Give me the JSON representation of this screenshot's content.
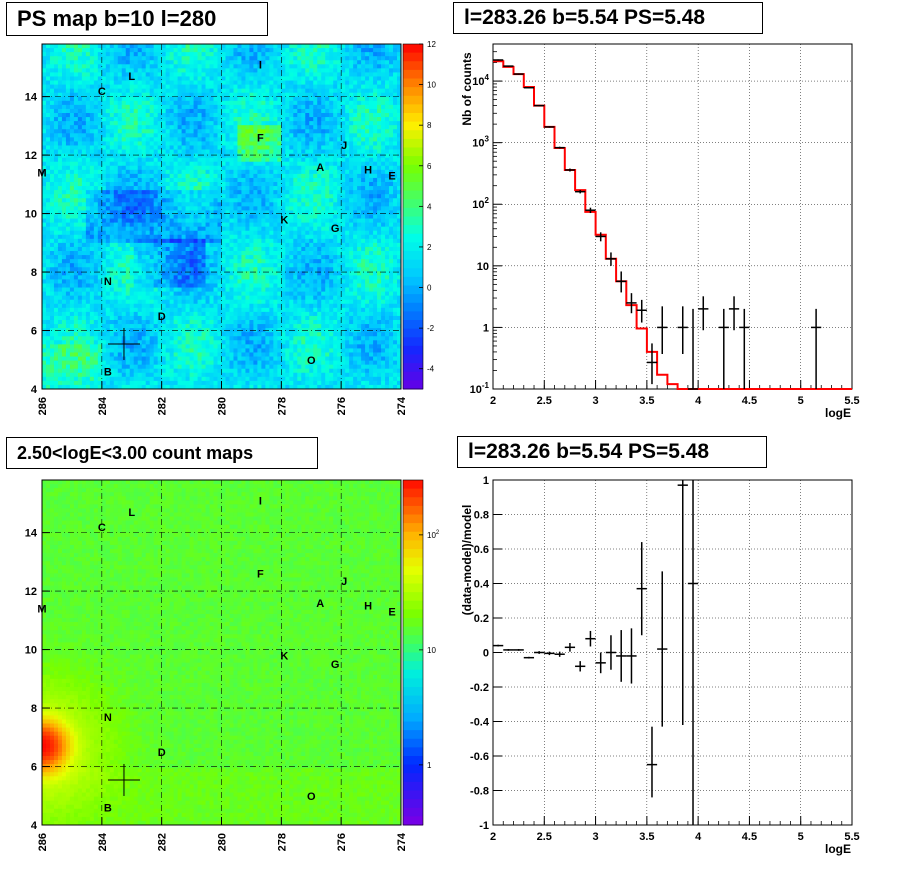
{
  "panels": {
    "ps_map_title": "PS map b=10 l=280",
    "spectrum_title": "l=283.26 b=5.54 PS=5.48",
    "count_map_title": "2.50<logE<3.00 count maps",
    "residual_title": "l=283.26 b=5.54 PS=5.48"
  },
  "colors": {
    "background": "#ffffff",
    "frame": "#000000",
    "model_line": "#ff0000",
    "data_marker": "#000000"
  },
  "chart_data": [
    {
      "type": "heatmap",
      "title": "PS map b=10 l=280",
      "x_ticks": [
        "286",
        "284",
        "282",
        "280",
        "278",
        "276",
        "274"
      ],
      "y_ticks": [
        "4",
        "6",
        "8",
        "10",
        "12",
        "14"
      ],
      "xlim": [
        286,
        274
      ],
      "ylim": [
        4,
        15.8
      ],
      "grid": true,
      "colorbar_ticks": [
        "12",
        "10",
        "8",
        "6",
        "4",
        "2",
        "0",
        "-2",
        "-4"
      ],
      "colorbar_range": [
        -5,
        12
      ],
      "dominant_value": 1.5,
      "source_marker": {
        "l": 283.26,
        "b": 5.54
      },
      "labels": [
        {
          "t": "L",
          "l": 283.0,
          "b": 14.7
        },
        {
          "t": "I",
          "l": 278.7,
          "b": 15.1
        },
        {
          "t": "C",
          "l": 284.0,
          "b": 14.2
        },
        {
          "t": "F",
          "l": 278.7,
          "b": 12.6
        },
        {
          "t": "J",
          "l": 275.9,
          "b": 12.35
        },
        {
          "t": "A",
          "l": 276.7,
          "b": 11.6
        },
        {
          "t": "H",
          "l": 275.1,
          "b": 11.5
        },
        {
          "t": "E",
          "l": 274.3,
          "b": 11.3
        },
        {
          "t": "M",
          "l": 286.0,
          "b": 11.4
        },
        {
          "t": "K",
          "l": 277.9,
          "b": 9.8
        },
        {
          "t": "G",
          "l": 276.2,
          "b": 9.5
        },
        {
          "t": "N",
          "l": 283.8,
          "b": 7.7
        },
        {
          "t": "D",
          "l": 282.0,
          "b": 6.5
        },
        {
          "t": "O",
          "l": 277.0,
          "b": 5.0
        },
        {
          "t": "B",
          "l": 283.8,
          "b": 4.6
        }
      ]
    },
    {
      "type": "line",
      "title": "l=283.26 b=5.54 PS=5.48",
      "xlabel": "logE",
      "ylabel": "Nb of counts",
      "xlim": [
        2,
        5.5
      ],
      "ylim": [
        0.1,
        40000
      ],
      "y_log": true,
      "grid": true,
      "x_ticks": [
        "2",
        "2.5",
        "3",
        "3.5",
        "4",
        "4.5",
        "5",
        "5.5"
      ],
      "y_ticks": [
        "10^-1",
        "1",
        "10",
        "10^2",
        "10^3",
        "10^4"
      ],
      "series": [
        {
          "kind": "model-step",
          "x_edges": [
            2.0,
            2.1,
            2.2,
            2.3,
            2.4,
            2.5,
            2.6,
            2.7,
            2.8,
            2.9,
            3.0,
            3.1,
            3.2,
            3.3,
            3.4,
            3.5,
            3.6,
            3.7,
            3.8,
            3.9,
            4.0,
            4.1,
            4.2,
            4.3,
            5.5
          ],
          "values": [
            21000,
            17000,
            13000,
            8000,
            4000,
            1800,
            820,
            360,
            170,
            75,
            32,
            13,
            5.6,
            2.3,
            0.96,
            0.4,
            0.17,
            0.12,
            0.1,
            0.1,
            0.1,
            0.1,
            0.1,
            0.1
          ]
        },
        {
          "kind": "data-points",
          "points": [
            {
              "x": 2.05,
              "y": 22000,
              "lo": 21500,
              "hi": 22500
            },
            {
              "x": 2.15,
              "y": 17500,
              "lo": 17100,
              "hi": 17900
            },
            {
              "x": 2.25,
              "y": 13000,
              "lo": 12700,
              "hi": 13300
            },
            {
              "x": 2.35,
              "y": 7800,
              "lo": 7600,
              "hi": 8000
            },
            {
              "x": 2.45,
              "y": 4000,
              "lo": 3900,
              "hi": 4100
            },
            {
              "x": 2.55,
              "y": 1800,
              "lo": 1750,
              "hi": 1850
            },
            {
              "x": 2.65,
              "y": 830,
              "lo": 800,
              "hi": 860
            },
            {
              "x": 2.75,
              "y": 360,
              "lo": 340,
              "hi": 380
            },
            {
              "x": 2.85,
              "y": 160,
              "lo": 150,
              "hi": 170
            },
            {
              "x": 2.95,
              "y": 80,
              "lo": 72,
              "hi": 88
            },
            {
              "x": 3.05,
              "y": 30,
              "lo": 25,
              "hi": 35
            },
            {
              "x": 3.15,
              "y": 13,
              "lo": 10,
              "hi": 16.5
            },
            {
              "x": 3.25,
              "y": 5.6,
              "lo": 3.7,
              "hi": 8.1
            },
            {
              "x": 3.35,
              "y": 2.5,
              "lo": 1.7,
              "hi": 3.6
            },
            {
              "x": 3.45,
              "y": 1.9,
              "lo": 1.2,
              "hi": 2.8
            },
            {
              "x": 3.55,
              "y": 0.27,
              "lo": 0.12,
              "hi": 0.55
            },
            {
              "x": 3.65,
              "y": 1.0,
              "lo": 0.37,
              "hi": 2.2
            },
            {
              "x": 3.85,
              "y": 1.0,
              "lo": 0.37,
              "hi": 2.2
            },
            {
              "x": 3.95,
              "y": 0.1,
              "lo": 0.1,
              "hi": 2.0
            },
            {
              "x": 4.05,
              "y": 2.0,
              "lo": 0.9,
              "hi": 3.2
            },
            {
              "x": 4.25,
              "y": 1.0,
              "lo": 0.1,
              "hi": 2.0
            },
            {
              "x": 4.35,
              "y": 2.0,
              "lo": 0.9,
              "hi": 3.2
            },
            {
              "x": 4.45,
              "y": 1.0,
              "lo": 0.1,
              "hi": 2.0
            },
            {
              "x": 5.15,
              "y": 1.0,
              "lo": 0.1,
              "hi": 2.0
            }
          ]
        }
      ]
    },
    {
      "type": "heatmap",
      "title": "2.50<logE<3.00 count maps",
      "x_ticks": [
        "286",
        "284",
        "282",
        "280",
        "278",
        "276",
        "274"
      ],
      "y_ticks": [
        "4",
        "6",
        "8",
        "10",
        "12",
        "14"
      ],
      "xlim": [
        286,
        274
      ],
      "ylim": [
        4,
        15.8
      ],
      "grid": true,
      "colorbar_ticks": [
        "10^2",
        "10",
        "1"
      ],
      "colorbar_range": [
        0.3,
        300
      ],
      "dominant_value": 15,
      "hotspot": {
        "l": 286.0,
        "b": 6.7
      },
      "source_marker": {
        "l": 283.26,
        "b": 5.54
      },
      "labels": [
        {
          "t": "L",
          "l": 283.0,
          "b": 14.7
        },
        {
          "t": "I",
          "l": 278.7,
          "b": 15.1
        },
        {
          "t": "C",
          "l": 284.0,
          "b": 14.2
        },
        {
          "t": "F",
          "l": 278.7,
          "b": 12.6
        },
        {
          "t": "J",
          "l": 275.9,
          "b": 12.35
        },
        {
          "t": "A",
          "l": 276.7,
          "b": 11.6
        },
        {
          "t": "H",
          "l": 275.1,
          "b": 11.5
        },
        {
          "t": "E",
          "l": 274.3,
          "b": 11.3
        },
        {
          "t": "M",
          "l": 286.0,
          "b": 11.4
        },
        {
          "t": "K",
          "l": 277.9,
          "b": 9.8
        },
        {
          "t": "G",
          "l": 276.2,
          "b": 9.5
        },
        {
          "t": "N",
          "l": 283.8,
          "b": 7.7
        },
        {
          "t": "D",
          "l": 282.0,
          "b": 6.5
        },
        {
          "t": "O",
          "l": 277.0,
          "b": 5.0
        },
        {
          "t": "B",
          "l": 283.8,
          "b": 4.6
        }
      ]
    },
    {
      "type": "scatter",
      "title": "l=283.26 b=5.54 PS=5.48",
      "xlabel": "logE",
      "ylabel": "(data-model)/model",
      "xlim": [
        2,
        5.5
      ],
      "ylim": [
        -1,
        1
      ],
      "grid": true,
      "x_ticks": [
        "2",
        "2.5",
        "3",
        "3.5",
        "4",
        "4.5",
        "5",
        "5.5"
      ],
      "y_ticks": [
        "-1",
        "-0.8",
        "-0.6",
        "-0.4",
        "-0.2",
        "0",
        "0.2",
        "0.4",
        "0.6",
        "0.8",
        "1"
      ],
      "points": [
        {
          "x": 2.05,
          "y": 0.04,
          "lo": 0.035,
          "hi": 0.045
        },
        {
          "x": 2.15,
          "y": 0.015,
          "lo": 0.01,
          "hi": 0.02
        },
        {
          "x": 2.25,
          "y": 0.015,
          "lo": 0.01,
          "hi": 0.02
        },
        {
          "x": 2.35,
          "y": -0.03,
          "lo": -0.035,
          "hi": -0.025
        },
        {
          "x": 2.45,
          "y": 0.0,
          "lo": -0.008,
          "hi": 0.008
        },
        {
          "x": 2.55,
          "y": -0.005,
          "lo": -0.015,
          "hi": 0.005
        },
        {
          "x": 2.65,
          "y": -0.01,
          "lo": -0.025,
          "hi": 0.005
        },
        {
          "x": 2.75,
          "y": 0.03,
          "lo": 0.005,
          "hi": 0.055
        },
        {
          "x": 2.85,
          "y": -0.08,
          "lo": -0.11,
          "hi": -0.05
        },
        {
          "x": 2.95,
          "y": 0.08,
          "lo": 0.035,
          "hi": 0.125
        },
        {
          "x": 3.05,
          "y": -0.06,
          "lo": -0.12,
          "hi": 0.0
        },
        {
          "x": 3.15,
          "y": 0.0,
          "lo": -0.1,
          "hi": 0.1
        },
        {
          "x": 3.25,
          "y": -0.02,
          "lo": -0.17,
          "hi": 0.13
        },
        {
          "x": 3.35,
          "y": -0.02,
          "lo": -0.18,
          "hi": 0.14
        },
        {
          "x": 3.45,
          "y": 0.37,
          "lo": 0.1,
          "hi": 0.64
        },
        {
          "x": 3.55,
          "y": -0.65,
          "lo": -0.84,
          "hi": -0.43
        },
        {
          "x": 3.65,
          "y": 0.02,
          "lo": -0.43,
          "hi": 0.47
        },
        {
          "x": 3.85,
          "y": 0.97,
          "lo": -0.42,
          "hi": 1.0
        },
        {
          "x": 3.95,
          "y": 0.4,
          "lo": -1.0,
          "hi": 1.0
        }
      ]
    }
  ]
}
